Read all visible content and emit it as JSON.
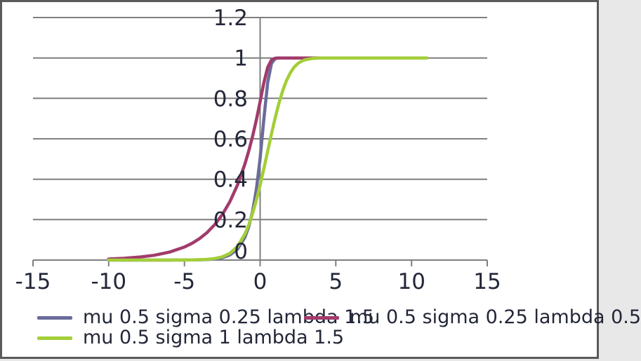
{
  "colors": {
    "background": "#ffffff",
    "border": "#5a5a5a",
    "grid": "#7f7f7f",
    "axis": "#7f7f7f",
    "text": "#232738"
  },
  "chart_data": {
    "type": "line",
    "title": "",
    "xlabel": "",
    "ylabel": "",
    "grid": true,
    "legend_position": "bottom",
    "x_axis": {
      "min": -15,
      "max": 15,
      "tick_values": [
        -15,
        -10,
        -5,
        0,
        5,
        10,
        15
      ],
      "tick_labels": [
        "-15",
        "-10",
        "-5",
        "0",
        "5",
        "10",
        "15"
      ]
    },
    "y_axis": {
      "min": 0,
      "max": 1.2,
      "tick_values": [
        1.2,
        1,
        0.8,
        0.6,
        0.4,
        0.2,
        0
      ],
      "tick_labels": [
        "1.2",
        "1",
        "0.8",
        "0.6",
        "0.4",
        "0.2",
        "0"
      ]
    },
    "x": [
      -10,
      -9,
      -8,
      -7,
      -6,
      -5,
      -4.5,
      -4,
      -3.5,
      -3,
      -2.5,
      -2,
      -1.5,
      -1,
      -0.75,
      -0.5,
      -0.25,
      0,
      0.25,
      0.5,
      0.75,
      1,
      1.25,
      1.5,
      1.75,
      2,
      2.25,
      2.5,
      2.75,
      3,
      3.5,
      4,
      4.5,
      5,
      6,
      7,
      8,
      9,
      10,
      11
    ],
    "series": [
      {
        "name": "mu 0.5 sigma 0.25 lambda 1.5",
        "color": "#6b6b9b",
        "values": [
          0,
          0,
          0,
          0,
          0.0001,
          0.0003,
          0.0006,
          0.0013,
          0.0027,
          0.0056,
          0.0119,
          0.0252,
          0.0534,
          0.1131,
          0.1646,
          0.2394,
          0.3481,
          0.5032,
          0.6999,
          0.8796,
          0.9734,
          0.9972,
          0.9998,
          1,
          1,
          1,
          1,
          1,
          1,
          1,
          1,
          1,
          1,
          1,
          1,
          1,
          1,
          1,
          1,
          1
        ]
      },
      {
        "name": "mu 0.5 sigma 0.25 lambda 0.5",
        "color": "#a23b6c",
        "values": [
          0.0053,
          0.0087,
          0.0144,
          0.0237,
          0.0391,
          0.0644,
          0.0827,
          0.1062,
          0.1364,
          0.1752,
          0.2249,
          0.2888,
          0.3709,
          0.4761,
          0.5395,
          0.6113,
          0.6927,
          0.7839,
          0.8784,
          0.9538,
          0.9901,
          0.9989,
          0.9999,
          1,
          1,
          1,
          1,
          1,
          1,
          1,
          1,
          1,
          1,
          1,
          1,
          1,
          1,
          1,
          1,
          1
        ]
      },
      {
        "name": "mu 0.5 sigma 1 lambda 1.5",
        "color": "#a3ce38",
        "values": [
          0,
          0,
          0,
          0,
          0.0001,
          0.0004,
          0.0008,
          0.0017,
          0.0036,
          0.0076,
          0.016,
          0.0334,
          0.0671,
          0.1289,
          0.1737,
          0.2292,
          0.2952,
          0.3707,
          0.4532,
          0.5394,
          0.6249,
          0.7058,
          0.7784,
          0.8402,
          0.8892,
          0.9269,
          0.9547,
          0.9727,
          0.9846,
          0.9916,
          0.998,
          0.9996,
          0.9999,
          1,
          1,
          1,
          1,
          1,
          1,
          1
        ]
      }
    ]
  }
}
